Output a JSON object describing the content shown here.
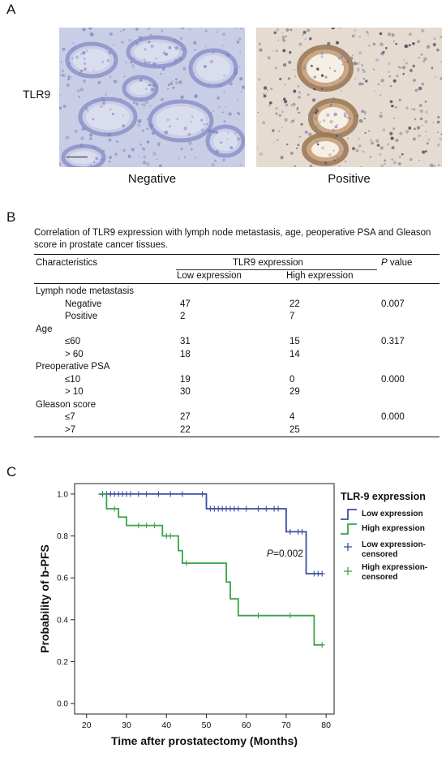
{
  "panel_labels": {
    "a": "A",
    "b": "B",
    "c": "C"
  },
  "panel_a": {
    "row_label": "TLR9",
    "negative_caption": "Negative",
    "positive_caption": "Positive",
    "colors": {
      "negative_bg": "#c9cde6",
      "negative_stain": "#7f86c0",
      "positive_bg": "#e6dbd0",
      "positive_stain": "#9c7a57"
    }
  },
  "panel_b": {
    "title": "Correlation of TLR9 expression with lymph node metastasis, age, peoperative PSA and Gleason score in prostate cancer tissues.",
    "headers": {
      "characteristics": "Characteristics",
      "group": "TLR9 expression",
      "low": "Low expression",
      "high": "High expression",
      "p_italic": "P",
      "p_rest": " value"
    },
    "rows": [
      {
        "label": "Lymph node metastasis",
        "indent": false,
        "low": "",
        "high": "",
        "p": ""
      },
      {
        "label": "Negative",
        "indent": true,
        "low": "47",
        "high": "22",
        "p": "0.007"
      },
      {
        "label": "Positive",
        "indent": true,
        "low": "2",
        "high": "7",
        "p": ""
      },
      {
        "label": "Age",
        "indent": false,
        "low": "",
        "high": "",
        "p": ""
      },
      {
        "label": "≤60",
        "indent": true,
        "low": "31",
        "high": "15",
        "p": "0.317"
      },
      {
        "label": "> 60",
        "indent": true,
        "low": "18",
        "high": "14",
        "p": ""
      },
      {
        "label": "Preoperative PSA",
        "indent": false,
        "low": "",
        "high": "",
        "p": ""
      },
      {
        "label": "≤10",
        "indent": true,
        "low": "19",
        "high": "0",
        "p": "0.000"
      },
      {
        "label": "> 10",
        "indent": true,
        "low": "30",
        "high": "29",
        "p": ""
      },
      {
        "label": "Gleason score",
        "indent": false,
        "low": "",
        "high": "",
        "p": ""
      },
      {
        "label": "≤7",
        "indent": true,
        "low": "27",
        "high": "4",
        "p": "0.000"
      },
      {
        "label": ">7",
        "indent": true,
        "low": "22",
        "high": "25",
        "p": ""
      }
    ]
  },
  "chart_data": {
    "type": "line",
    "title": "",
    "xlabel": "Time after prostatectomy (Months)",
    "ylabel": "Probability of b-PFS",
    "xlim": [
      17,
      82
    ],
    "ylim": [
      -0.05,
      1.05
    ],
    "x_ticks": [
      20,
      30,
      40,
      50,
      60,
      70,
      80
    ],
    "y_ticks": [
      "0.0",
      "0.2",
      "0.4",
      "0.6",
      "0.8",
      "1.0"
    ],
    "legend": {
      "title": "TLR-9 expression",
      "placement": "right",
      "entries": [
        "Low expression",
        "High expression",
        "Low expression-censored",
        "High expression-censored"
      ],
      "censored_low_lines": [
        "Low expression-",
        "censored"
      ],
      "censored_high_lines": [
        "High expression-",
        "censored"
      ]
    },
    "annotation": {
      "p_italic": "P",
      "p_rest": "=0.002",
      "x": 70,
      "y": 0.72
    },
    "series": [
      {
        "name": "Low expression",
        "color": "#3b4fa0",
        "steps": [
          [
            23,
            1.0
          ],
          [
            50,
            1.0
          ],
          [
            50,
            0.93
          ],
          [
            70,
            0.93
          ],
          [
            70,
            0.82
          ],
          [
            75,
            0.82
          ],
          [
            75,
            0.62
          ],
          [
            79,
            0.62
          ]
        ],
        "censored": [
          [
            24,
            1.0
          ],
          [
            25,
            1.0
          ],
          [
            26,
            1.0
          ],
          [
            27,
            1.0
          ],
          [
            28,
            1.0
          ],
          [
            29,
            1.0
          ],
          [
            30,
            1.0
          ],
          [
            31,
            1.0
          ],
          [
            33,
            1.0
          ],
          [
            35,
            1.0
          ],
          [
            38,
            1.0
          ],
          [
            41,
            1.0
          ],
          [
            44,
            1.0
          ],
          [
            49,
            1.0
          ],
          [
            51,
            0.93
          ],
          [
            52,
            0.93
          ],
          [
            53,
            0.93
          ],
          [
            54,
            0.93
          ],
          [
            55,
            0.93
          ],
          [
            56,
            0.93
          ],
          [
            57,
            0.93
          ],
          [
            58,
            0.93
          ],
          [
            60,
            0.93
          ],
          [
            63,
            0.93
          ],
          [
            65,
            0.93
          ],
          [
            67,
            0.93
          ],
          [
            68,
            0.93
          ],
          [
            71,
            0.82
          ],
          [
            73,
            0.82
          ],
          [
            74,
            0.82
          ],
          [
            77,
            0.62
          ],
          [
            78,
            0.62
          ],
          [
            79,
            0.62
          ]
        ]
      },
      {
        "name": "High expression",
        "color": "#3aa34a",
        "steps": [
          [
            23,
            1.0
          ],
          [
            25,
            1.0
          ],
          [
            25,
            0.93
          ],
          [
            28,
            0.93
          ],
          [
            28,
            0.89
          ],
          [
            30,
            0.89
          ],
          [
            30,
            0.85
          ],
          [
            39,
            0.85
          ],
          [
            39,
            0.8
          ],
          [
            43,
            0.8
          ],
          [
            43,
            0.73
          ],
          [
            44,
            0.73
          ],
          [
            44,
            0.67
          ],
          [
            55,
            0.67
          ],
          [
            55,
            0.58
          ],
          [
            56,
            0.58
          ],
          [
            56,
            0.5
          ],
          [
            58,
            0.5
          ],
          [
            58,
            0.42
          ],
          [
            77,
            0.42
          ],
          [
            77,
            0.28
          ],
          [
            79,
            0.28
          ]
        ],
        "censored": [
          [
            27,
            0.93
          ],
          [
            33,
            0.85
          ],
          [
            35,
            0.85
          ],
          [
            37,
            0.85
          ],
          [
            40,
            0.8
          ],
          [
            41,
            0.8
          ],
          [
            45,
            0.67
          ],
          [
            63,
            0.42
          ],
          [
            71,
            0.42
          ],
          [
            79,
            0.28
          ]
        ]
      }
    ]
  }
}
